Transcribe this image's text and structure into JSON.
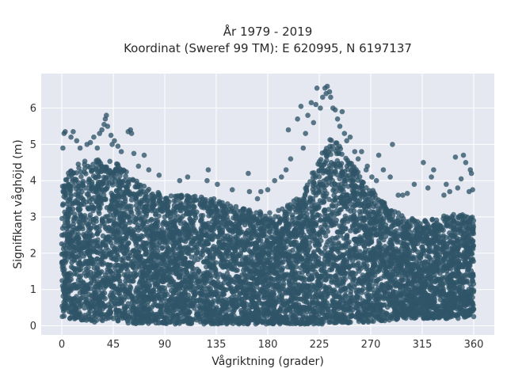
{
  "chart_data": {
    "type": "scatter",
    "title_line1": "År 1979 - 2019",
    "title_line2": "Koordinat (Sweref 99 TM): E 620995, N 6197137",
    "xlabel": "Vågriktning (grader)",
    "ylabel": "Signifikant våghöjd (m)",
    "xlim": [
      -18,
      378
    ],
    "ylim": [
      -0.25,
      6.95
    ],
    "xticks": [
      0,
      45,
      90,
      135,
      180,
      225,
      270,
      315,
      360
    ],
    "yticks": [
      0,
      1,
      2,
      3,
      4,
      5,
      6
    ],
    "grid": true,
    "series": [
      {
        "color": "#2f5468",
        "opacity": 0.78,
        "envelope": {
          "x": [
            0,
            10,
            20,
            30,
            40,
            45,
            55,
            65,
            75,
            90,
            110,
            135,
            155,
            165,
            180,
            195,
            210,
            220,
            225,
            230,
            235,
            240,
            250,
            260,
            270,
            285,
            300,
            315,
            330,
            345,
            360
          ],
          "y_max": [
            4.0,
            4.4,
            4.6,
            4.6,
            4.5,
            4.6,
            4.3,
            4.0,
            3.8,
            3.6,
            3.6,
            3.5,
            3.3,
            3.2,
            3.1,
            3.3,
            3.6,
            4.3,
            4.6,
            5.0,
            5.2,
            5.1,
            4.6,
            4.2,
            3.8,
            3.3,
            3.0,
            2.9,
            3.0,
            3.1,
            3.0
          ],
          "y_min": [
            0.25,
            0.15,
            0.12,
            0.1,
            0.1,
            0.1,
            0.08,
            0.05,
            0.05,
            0.05,
            0.05,
            0.05,
            0.05,
            0.05,
            0.05,
            0.05,
            0.05,
            0.05,
            0.05,
            0.05,
            0.05,
            0.08,
            0.08,
            0.1,
            0.1,
            0.15,
            0.2,
            0.2,
            0.2,
            0.2,
            0.25
          ]
        },
        "outliers": [
          [
            1,
            4.9
          ],
          [
            2,
            5.3
          ],
          [
            3,
            5.35
          ],
          [
            8,
            5.2
          ],
          [
            10,
            5.35
          ],
          [
            13,
            5.1
          ],
          [
            16,
            4.9
          ],
          [
            22,
            5.0
          ],
          [
            25,
            5.05
          ],
          [
            28,
            5.2
          ],
          [
            31,
            4.9
          ],
          [
            33,
            5.3
          ],
          [
            35,
            5.4
          ],
          [
            37,
            5.55
          ],
          [
            38,
            5.7
          ],
          [
            39,
            5.8
          ],
          [
            40,
            5.5
          ],
          [
            43,
            5.25
          ],
          [
            44,
            5.0
          ],
          [
            46,
            5.1
          ],
          [
            49,
            4.95
          ],
          [
            52,
            4.8
          ],
          [
            58,
            5.35
          ],
          [
            60,
            5.4
          ],
          [
            61,
            5.3
          ],
          [
            63,
            4.75
          ],
          [
            67,
            4.4
          ],
          [
            72,
            4.7
          ],
          [
            76,
            4.3
          ],
          [
            85,
            4.15
          ],
          [
            103,
            4.0
          ],
          [
            110,
            4.1
          ],
          [
            127,
            4.0
          ],
          [
            128,
            4.3
          ],
          [
            136,
            3.9
          ],
          [
            149,
            3.75
          ],
          [
            163,
            4.2
          ],
          [
            164,
            3.7
          ],
          [
            171,
            3.5
          ],
          [
            174,
            3.7
          ],
          [
            180,
            3.75
          ],
          [
            186,
            4.0
          ],
          [
            192,
            4.1
          ],
          [
            196,
            4.3
          ],
          [
            198,
            5.4
          ],
          [
            200,
            4.6
          ],
          [
            206,
            5.7
          ],
          [
            209,
            6.05
          ],
          [
            211,
            4.9
          ],
          [
            213,
            5.3
          ],
          [
            215,
            5.8
          ],
          [
            218,
            6.15
          ],
          [
            220,
            5.6
          ],
          [
            222,
            6.1
          ],
          [
            223,
            6.55
          ],
          [
            226,
            6.0
          ],
          [
            228,
            6.3
          ],
          [
            230,
            6.55
          ],
          [
            231,
            6.4
          ],
          [
            232,
            6.6
          ],
          [
            234,
            6.45
          ],
          [
            235,
            6.3
          ],
          [
            237,
            6.0
          ],
          [
            239,
            5.95
          ],
          [
            241,
            5.7
          ],
          [
            243,
            5.5
          ],
          [
            245,
            5.9
          ],
          [
            247,
            5.3
          ],
          [
            249,
            5.1
          ],
          [
            252,
            5.2
          ],
          [
            256,
            4.8
          ],
          [
            259,
            4.6
          ],
          [
            262,
            4.8
          ],
          [
            267,
            4.4
          ],
          [
            271,
            4.1
          ],
          [
            277,
            4.7
          ],
          [
            281,
            4.3
          ],
          [
            287,
            4.1
          ],
          [
            289,
            5.0
          ],
          [
            294,
            3.6
          ],
          [
            302,
            3.65
          ],
          [
            308,
            3.9
          ],
          [
            316,
            4.5
          ],
          [
            323,
            4.1
          ],
          [
            325,
            4.3
          ],
          [
            334,
            3.6
          ],
          [
            339,
            3.7
          ],
          [
            344,
            4.65
          ],
          [
            346,
            3.8
          ],
          [
            349,
            4.05
          ],
          [
            351,
            4.7
          ],
          [
            353,
            4.5
          ],
          [
            356,
            3.7
          ],
          [
            358,
            4.2
          ],
          [
            359,
            3.75
          ],
          [
            357,
            4.3
          ],
          [
            336,
            3.9
          ],
          [
            320,
            3.8
          ],
          [
            298,
            3.6
          ],
          [
            275,
            4.0
          ],
          [
            266,
            4.3
          ]
        ]
      }
    ]
  }
}
